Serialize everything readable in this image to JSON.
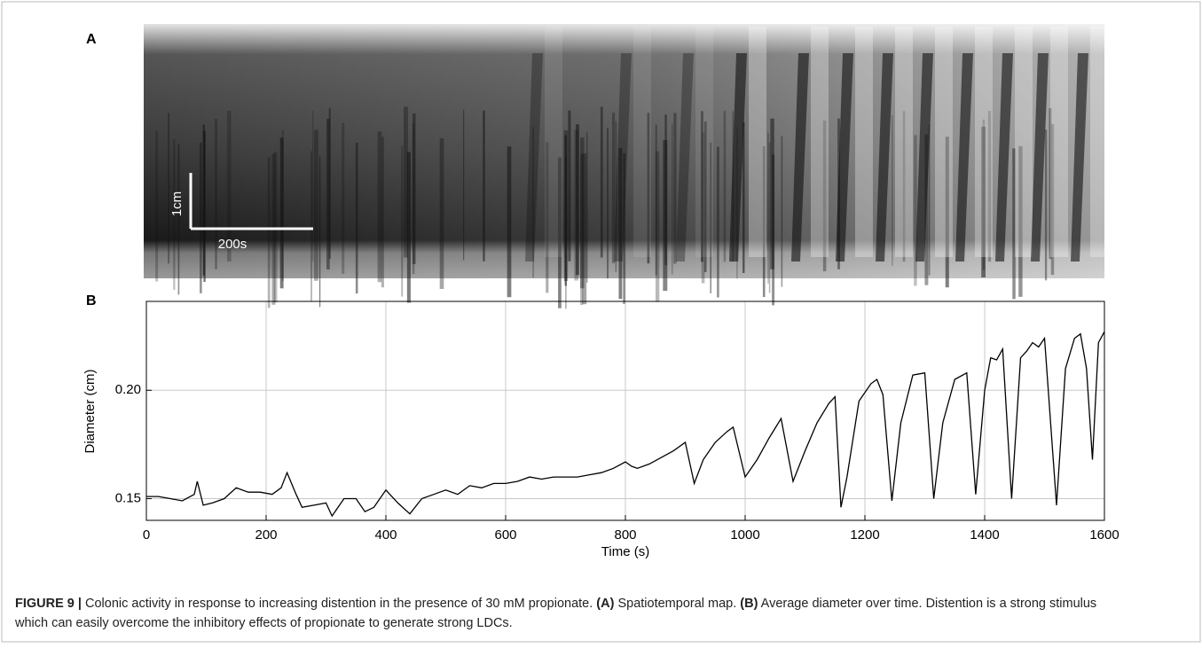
{
  "panel_a": {
    "label": "A",
    "scale_bar": {
      "vertical": "1cm",
      "horizontal": "200s"
    }
  },
  "chart_data": {
    "type": "line",
    "panel_label": "B",
    "xlabel": "Time (s)",
    "ylabel": "Diameter (cm)",
    "x": [
      0,
      20,
      40,
      60,
      80,
      85,
      95,
      110,
      130,
      150,
      170,
      190,
      210,
      225,
      235,
      250,
      260,
      280,
      300,
      310,
      330,
      350,
      365,
      380,
      400,
      420,
      440,
      460,
      480,
      500,
      520,
      540,
      560,
      580,
      600,
      620,
      640,
      660,
      680,
      700,
      720,
      740,
      760,
      780,
      800,
      810,
      820,
      840,
      860,
      880,
      900,
      915,
      930,
      950,
      970,
      980,
      1000,
      1020,
      1040,
      1060,
      1080,
      1100,
      1120,
      1140,
      1150,
      1160,
      1170,
      1190,
      1210,
      1220,
      1230,
      1245,
      1260,
      1280,
      1300,
      1315,
      1330,
      1350,
      1370,
      1385,
      1400,
      1410,
      1420,
      1430,
      1445,
      1460,
      1470,
      1480,
      1490,
      1500,
      1520,
      1535,
      1550,
      1560,
      1570,
      1580,
      1590,
      1600
    ],
    "series": [
      {
        "color": "#000000",
        "values": [
          0.151,
          0.151,
          0.15,
          0.149,
          0.152,
          0.158,
          0.147,
          0.148,
          0.15,
          0.155,
          0.153,
          0.153,
          0.152,
          0.155,
          0.162,
          0.152,
          0.146,
          0.147,
          0.148,
          0.142,
          0.15,
          0.15,
          0.144,
          0.146,
          0.154,
          0.148,
          0.143,
          0.15,
          0.152,
          0.154,
          0.152,
          0.156,
          0.155,
          0.157,
          0.157,
          0.158,
          0.16,
          0.159,
          0.16,
          0.16,
          0.16,
          0.161,
          0.162,
          0.164,
          0.167,
          0.165,
          0.164,
          0.166,
          0.169,
          0.172,
          0.176,
          0.157,
          0.168,
          0.176,
          0.181,
          0.183,
          0.16,
          0.168,
          0.178,
          0.187,
          0.158,
          0.172,
          0.185,
          0.194,
          0.197,
          0.146,
          0.16,
          0.195,
          0.203,
          0.205,
          0.198,
          0.149,
          0.185,
          0.207,
          0.208,
          0.15,
          0.185,
          0.205,
          0.208,
          0.152,
          0.2,
          0.215,
          0.214,
          0.219,
          0.15,
          0.215,
          0.218,
          0.222,
          0.22,
          0.224,
          0.147,
          0.21,
          0.224,
          0.226,
          0.21,
          0.168,
          0.222,
          0.227
        ]
      }
    ],
    "xlim": [
      0,
      1600
    ],
    "ylim": [
      0.14,
      0.241
    ],
    "xticks": [
      0,
      200,
      400,
      600,
      800,
      1000,
      1200,
      1400,
      1600
    ],
    "yticks": [
      0.15,
      {
        "value": 0.2,
        "label": "0.20"
      }
    ],
    "grid": true
  },
  "caption": [
    {
      "text": "FIGURE 9 |",
      "bold": true
    },
    {
      "text": " Colonic activity in response to increasing distention in the presence of 30 mM propionate. ",
      "bold": false
    },
    {
      "text": "(A)",
      "bold": true
    },
    {
      "text": " Spatiotemporal map. ",
      "bold": false
    },
    {
      "text": "(B)",
      "bold": true
    },
    {
      "text": " Average diameter over time. Distention is a strong stimulus which can easily overcome the inhibitory effects of propionate to generate strong LDCs.",
      "bold": false
    }
  ]
}
